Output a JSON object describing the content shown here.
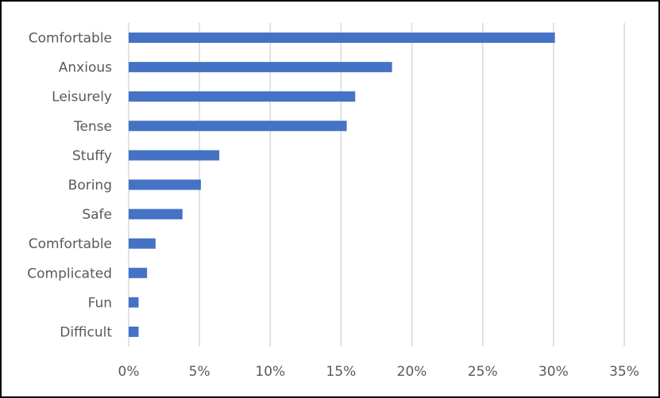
{
  "chart_data": {
    "type": "bar",
    "orientation": "horizontal",
    "title": "",
    "xlabel": "",
    "ylabel": "",
    "categories": [
      "Comfortable",
      "Anxious",
      "Leisurely",
      "Tense",
      "Stuffy",
      "Boring",
      "Safe",
      "Comfortable",
      "Complicated",
      "Fun",
      "Difficult"
    ],
    "values": [
      30.1,
      18.6,
      16.0,
      15.4,
      6.4,
      5.1,
      3.8,
      1.9,
      1.3,
      0.7,
      0.7
    ],
    "xlim": [
      0,
      35
    ],
    "xticks": [
      0,
      5,
      10,
      15,
      20,
      25,
      30,
      35
    ],
    "xtick_labels": [
      "0%",
      "5%",
      "10%",
      "15%",
      "20%",
      "25%",
      "30%",
      "35%"
    ],
    "grid": "vertical",
    "legend": "none",
    "bar_color": "#4472C4",
    "grid_color": "#D9D9D9"
  }
}
